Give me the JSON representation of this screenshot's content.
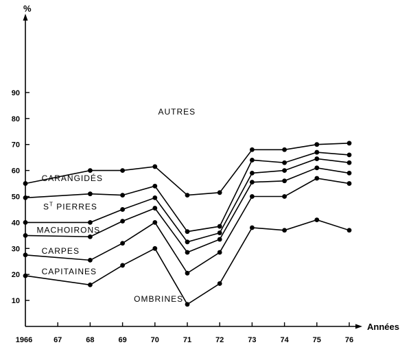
{
  "chart_data": {
    "type": "line",
    "title": "",
    "ylabel": "%",
    "xlabel": "Années",
    "ylim": [
      0,
      95
    ],
    "y_ticks": [
      10,
      20,
      30,
      40,
      50,
      60,
      70,
      80,
      90
    ],
    "x": [
      1966,
      1967,
      1968,
      1969,
      1970,
      1971,
      1972,
      1973,
      1974,
      1975,
      1976
    ],
    "x_tick_labels": [
      "1966",
      "67",
      "68",
      "69",
      "70",
      "71",
      "72",
      "73",
      "74",
      "75",
      "76"
    ],
    "grid": false,
    "series": [
      {
        "name": "OMBRINES",
        "points": [
          [
            1966,
            19.5
          ],
          [
            1968,
            16
          ],
          [
            1969,
            23.5
          ],
          [
            1970,
            30
          ],
          [
            1971,
            8.5
          ],
          [
            1972,
            16.5
          ],
          [
            1973,
            38
          ],
          [
            1974,
            37
          ],
          [
            1975,
            41
          ],
          [
            1976,
            37
          ]
        ]
      },
      {
        "name": "CAPITAINES",
        "points": [
          [
            1966,
            27.5
          ],
          [
            1968,
            25.5
          ],
          [
            1969,
            32
          ],
          [
            1970,
            40
          ],
          [
            1971,
            20.5
          ],
          [
            1972,
            28.5
          ],
          [
            1973,
            50
          ],
          [
            1974,
            50
          ],
          [
            1975,
            57
          ],
          [
            1976,
            55
          ]
        ]
      },
      {
        "name": "CARPES",
        "points": [
          [
            1966,
            35
          ],
          [
            1968,
            34.5
          ],
          [
            1969,
            40.5
          ],
          [
            1970,
            45.5
          ],
          [
            1971,
            28.5
          ],
          [
            1972,
            33.5
          ],
          [
            1973,
            55.5
          ],
          [
            1974,
            56
          ],
          [
            1975,
            61
          ],
          [
            1976,
            59
          ]
        ]
      },
      {
        "name": "MACHOIRONS",
        "points": [
          [
            1966,
            40
          ],
          [
            1968,
            40
          ],
          [
            1969,
            45
          ],
          [
            1970,
            49.5
          ],
          [
            1971,
            32.5
          ],
          [
            1972,
            36
          ],
          [
            1973,
            59
          ],
          [
            1974,
            60
          ],
          [
            1975,
            64.5
          ],
          [
            1976,
            63
          ]
        ]
      },
      {
        "name": "ST PIERRES",
        "points": [
          [
            1966,
            49.5
          ],
          [
            1968,
            51
          ],
          [
            1969,
            50.5
          ],
          [
            1970,
            54
          ],
          [
            1971,
            36.5
          ],
          [
            1972,
            38.5
          ],
          [
            1973,
            64
          ],
          [
            1974,
            63
          ],
          [
            1975,
            67
          ],
          [
            1976,
            66
          ]
        ]
      },
      {
        "name": "CARANGIDÉS",
        "points": [
          [
            1966,
            55
          ],
          [
            1968,
            60
          ],
          [
            1969,
            60
          ],
          [
            1970,
            61.5
          ],
          [
            1971,
            50.5
          ],
          [
            1972,
            51.5
          ],
          [
            1973,
            68
          ],
          [
            1974,
            68
          ],
          [
            1975,
            70
          ],
          [
            1976,
            70.5
          ]
        ]
      }
    ],
    "band_labels": [
      {
        "text": "AUTRES",
        "x": 1970.1,
        "y": 81.5,
        "sup": ""
      },
      {
        "text": "CARANGIDÉS",
        "x": 1966.5,
        "y": 56,
        "sup": ""
      },
      {
        "text": "PIERRES",
        "x": 1966.55,
        "y": 45,
        "sup": "T",
        "prefix": "S"
      },
      {
        "text": "MACHOIRONS",
        "x": 1966.35,
        "y": 36,
        "sup": ""
      },
      {
        "text": "CARPES",
        "x": 1966.5,
        "y": 28,
        "sup": ""
      },
      {
        "text": "CAPITAINES",
        "x": 1966.5,
        "y": 20,
        "sup": ""
      },
      {
        "text": "OMBRINES",
        "x": 1969.35,
        "y": 9.5,
        "sup": ""
      }
    ]
  }
}
